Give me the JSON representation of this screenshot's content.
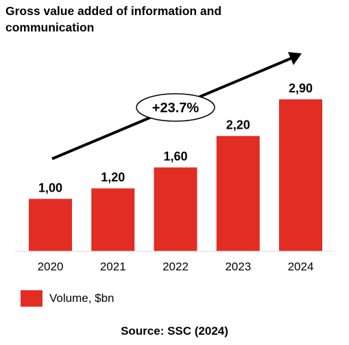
{
  "title_line1": "Gross value added of information and",
  "title_line2": "communication",
  "source": "Source: SSC (2024)",
  "growth_label": "+23.7%",
  "colors": {
    "bar": "#e22d24",
    "arrow": "#000000"
  },
  "chart_data": {
    "type": "bar",
    "title": "Gross value added of information and communication",
    "categories": [
      "2020",
      "2021",
      "2022",
      "2023",
      "2024"
    ],
    "values": [
      1.0,
      1.2,
      1.6,
      2.2,
      2.9
    ],
    "data_labels": [
      "1,00",
      "1,20",
      "1,60",
      "2,20",
      "2,90"
    ],
    "series": [
      {
        "name": "Volume, $bn",
        "values": [
          1.0,
          1.2,
          1.6,
          2.2,
          2.9
        ]
      }
    ],
    "ylim": [
      0,
      3.6
    ],
    "grid": false,
    "legend": "bottom-left",
    "annotation": "+23.7%"
  }
}
